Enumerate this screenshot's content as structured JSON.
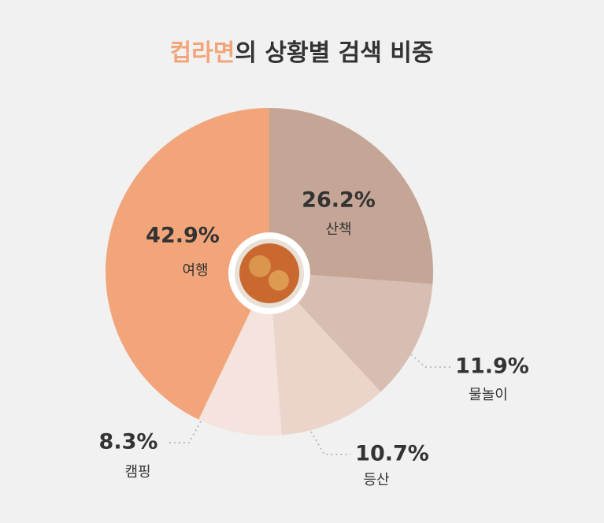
{
  "chart_data": {
    "type": "pie",
    "title_parts": [
      "컵라면",
      "의 상황별 검색 비중"
    ],
    "title_highlight_color": "#f2a57a",
    "categories": [
      "산책",
      "물놀이",
      "등산",
      "캠핑",
      "여행"
    ],
    "values": [
      26.2,
      11.9,
      10.7,
      8.3,
      42.9
    ],
    "value_labels": [
      "26.2%",
      "11.9%",
      "10.7%",
      "8.3%",
      "42.9%"
    ],
    "colors": [
      "#c4a596",
      "#d7bdb2",
      "#ebd5cb",
      "#f4e4dd",
      "#f2a57a"
    ]
  }
}
